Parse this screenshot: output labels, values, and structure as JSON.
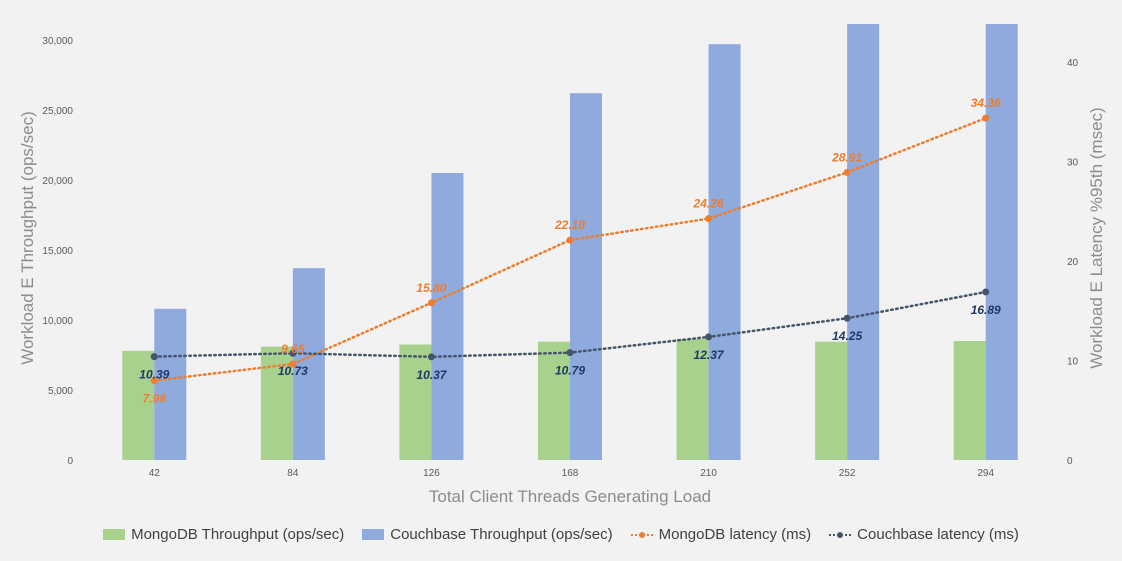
{
  "chart_data": {
    "type": "bar",
    "categories": [
      "42",
      "84",
      "126",
      "168",
      "210",
      "252",
      "294"
    ],
    "xlabel": "Total Client Threads Generating Load",
    "ylabel": "Workload E Throughput (ops/sec)",
    "y2label": "Workload E Latency %95th (msec)",
    "ylim": [
      0,
      30000
    ],
    "y2lim": [
      0,
      40
    ],
    "yticks": [
      "0",
      "5,000",
      "10,000",
      "15,000",
      "20,000",
      "25,000",
      "30,000"
    ],
    "y2ticks": [
      "0",
      "10",
      "20",
      "30",
      "40"
    ],
    "grid": false,
    "legend_position": "bottom",
    "series": [
      {
        "name": "MongoDB Throughput  (ops/sec)",
        "type": "bar",
        "axis": "left",
        "color": "#a9d18e",
        "values": [
          7800,
          8100,
          8250,
          8450,
          8650,
          8450,
          8500
        ]
      },
      {
        "name": "Couchbase Throughput  (ops/sec)",
        "type": "bar",
        "axis": "left",
        "color": "#8faadc",
        "values": [
          10800,
          13700,
          20500,
          26200,
          29700,
          31200,
          31200
        ]
      },
      {
        "name": "MongoDB latency (ms)",
        "type": "line",
        "axis": "right",
        "color": "#ed7d31",
        "values": [
          7.98,
          9.65,
          15.8,
          22.1,
          24.26,
          28.91,
          34.36
        ],
        "labels": [
          "7.98",
          "9.65",
          "15.80",
          "22.10",
          "24.26",
          "28.91",
          "34.36"
        ]
      },
      {
        "name": "Couchbase latency (ms)",
        "type": "line",
        "axis": "right",
        "color": "#44546a",
        "values": [
          10.39,
          10.73,
          10.37,
          10.79,
          12.37,
          14.25,
          16.89
        ],
        "labels": [
          "10.39",
          "10.73",
          "10.37",
          "10.79",
          "12.37",
          "14.25",
          "16.89"
        ]
      }
    ]
  }
}
